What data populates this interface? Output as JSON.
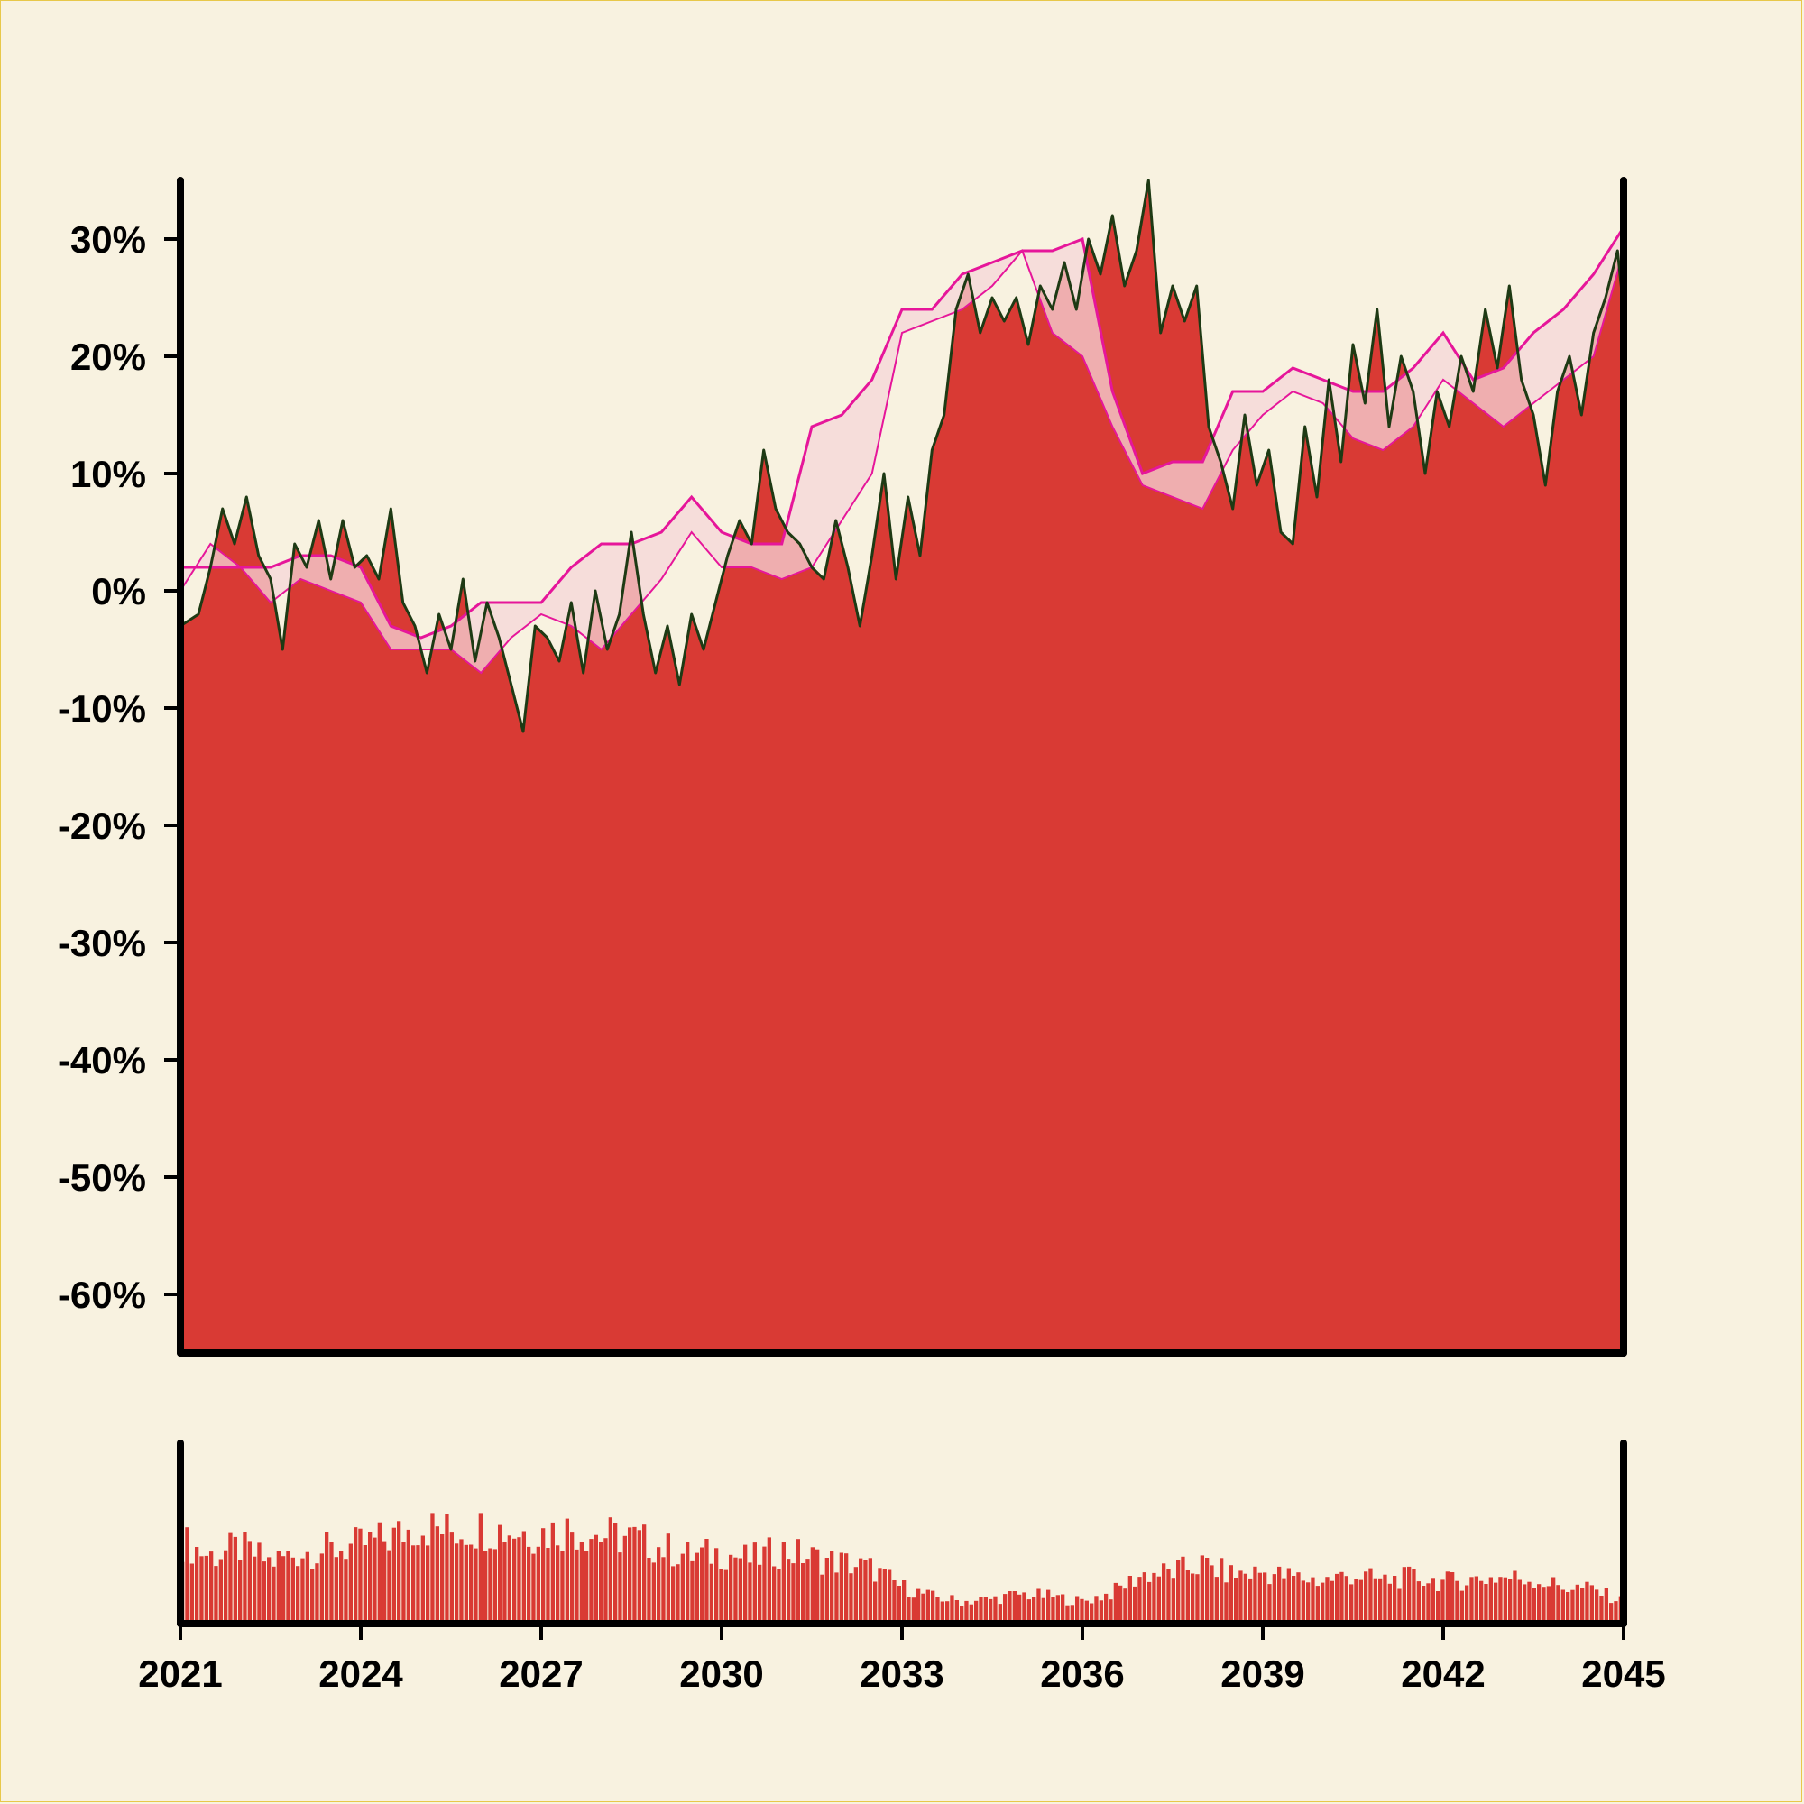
{
  "colors": {
    "background": "#f8f2e0",
    "area_fill": "#d93a34",
    "price_line": "#1e3a14",
    "band_line": "#e6169a",
    "band_fill": "#f5d6d8",
    "volume_bar": "#d93a34",
    "axis": "#000000"
  },
  "chart_data": [
    {
      "type": "area",
      "title": "",
      "xlabel": "",
      "ylabel": "",
      "x_range": [
        2021.0,
        2045.0
      ],
      "ylim": [
        -65,
        35
      ],
      "y_ticks": [
        30,
        20,
        10,
        0,
        -10,
        -20,
        -30,
        -40,
        -50,
        -60
      ],
      "y_tick_labels": [
        "30%",
        "20%",
        "10%",
        "0%",
        "-10%",
        "-20%",
        "-30%",
        "-40%",
        "-50%",
        "-60%"
      ],
      "grid": false,
      "legend": "none",
      "series": [
        {
          "role": "price",
          "x": [
            2021.0,
            2021.3,
            2021.5,
            2021.7,
            2021.9,
            2022.1,
            2022.3,
            2022.5,
            2022.7,
            2022.9,
            2023.1,
            2023.3,
            2023.5,
            2023.7,
            2023.9,
            2024.1,
            2024.3,
            2024.5,
            2024.7,
            2024.9,
            2025.1,
            2025.3,
            2025.5,
            2025.7,
            2025.9,
            2026.1,
            2026.3,
            2026.5,
            2026.7,
            2026.9,
            2027.1,
            2027.3,
            2027.5,
            2027.7,
            2027.9,
            2028.1,
            2028.3,
            2028.5,
            2028.7,
            2028.9,
            2029.1,
            2029.3,
            2029.5,
            2029.7,
            2029.9,
            2030.1,
            2030.3,
            2030.5,
            2030.7,
            2030.9,
            2031.1,
            2031.3,
            2031.5,
            2031.7,
            2031.9,
            2032.1,
            2032.3,
            2032.5,
            2032.7,
            2032.9,
            2033.1,
            2033.3,
            2033.5,
            2033.7,
            2033.9,
            2034.1,
            2034.3,
            2034.5,
            2034.7,
            2034.9,
            2035.1,
            2035.3,
            2035.5,
            2035.7,
            2035.9,
            2036.1,
            2036.3,
            2036.5,
            2036.7,
            2036.9,
            2037.1,
            2037.3,
            2037.5,
            2037.7,
            2037.9,
            2038.1,
            2038.3,
            2038.5,
            2038.7,
            2038.9,
            2039.1,
            2039.3,
            2039.5,
            2039.7,
            2039.9,
            2040.1,
            2040.3,
            2040.5,
            2040.7,
            2040.9,
            2041.1,
            2041.3,
            2041.5,
            2041.7,
            2041.9,
            2042.1,
            2042.3,
            2042.5,
            2042.7,
            2042.9,
            2043.1,
            2043.3,
            2043.5,
            2043.7,
            2043.9,
            2044.1,
            2044.3,
            2044.5,
            2044.7,
            2044.9,
            2045.0
          ],
          "y": [
            -3,
            -2,
            2,
            7,
            4,
            8,
            3,
            1,
            -5,
            4,
            2,
            6,
            1,
            6,
            2,
            3,
            1,
            7,
            -1,
            -3,
            -7,
            -2,
            -5,
            1,
            -6,
            -1,
            -4,
            -8,
            -12,
            -3,
            -4,
            -6,
            -1,
            -7,
            0,
            -5,
            -2,
            5,
            -2,
            -7,
            -3,
            -8,
            -2,
            -5,
            -1,
            3,
            6,
            4,
            12,
            7,
            5,
            4,
            2,
            1,
            6,
            2,
            -3,
            3,
            10,
            1,
            8,
            3,
            12,
            15,
            24,
            27,
            22,
            25,
            23,
            25,
            21,
            26,
            24,
            28,
            24,
            30,
            27,
            32,
            26,
            29,
            35,
            22,
            26,
            23,
            26,
            14,
            11,
            7,
            15,
            9,
            12,
            5,
            4,
            14,
            8,
            18,
            11,
            21,
            16,
            24,
            14,
            20,
            17,
            10,
            17,
            14,
            20,
            17,
            24,
            19,
            26,
            18,
            15,
            9,
            17,
            20,
            15,
            22,
            25,
            29,
            24
          ],
          "width": 3
        },
        {
          "role": "band_upper",
          "x": [
            2021.0,
            2021.5,
            2022.0,
            2022.5,
            2023.0,
            2023.5,
            2024.0,
            2024.5,
            2025.0,
            2025.5,
            2026.0,
            2026.5,
            2027.0,
            2027.5,
            2028.0,
            2028.5,
            2029.0,
            2029.5,
            2030.0,
            2030.5,
            2031.0,
            2031.5,
            2032.0,
            2032.5,
            2033.0,
            2033.5,
            2034.0,
            2034.5,
            2035.0,
            2035.5,
            2036.0,
            2036.5,
            2037.0,
            2037.5,
            2038.0,
            2038.5,
            2039.0,
            2039.5,
            2040.0,
            2040.5,
            2041.0,
            2041.5,
            2042.0,
            2042.5,
            2043.0,
            2043.5,
            2044.0,
            2044.5,
            2045.0
          ],
          "y": [
            2,
            2,
            2,
            2,
            3,
            3,
            2,
            -3,
            -4,
            -3,
            -1,
            -1,
            -1,
            2,
            4,
            4,
            5,
            8,
            5,
            4,
            4,
            14,
            15,
            18,
            24,
            24,
            27,
            28,
            29,
            29,
            30,
            17,
            10,
            11,
            11,
            17,
            17,
            19,
            18,
            17,
            17,
            19,
            22,
            18,
            19,
            22,
            24,
            27,
            31
          ],
          "width": 3
        },
        {
          "role": "band_lower",
          "x": [
            2021.0,
            2021.5,
            2022.0,
            2022.5,
            2023.0,
            2023.5,
            2024.0,
            2024.5,
            2025.0,
            2025.5,
            2026.0,
            2026.5,
            2027.0,
            2027.5,
            2028.0,
            2028.5,
            2029.0,
            2029.5,
            2030.0,
            2030.5,
            2031.0,
            2031.5,
            2032.0,
            2032.5,
            2033.0,
            2033.5,
            2034.0,
            2034.5,
            2035.0,
            2035.5,
            2036.0,
            2036.5,
            2037.0,
            2037.5,
            2038.0,
            2038.5,
            2039.0,
            2039.5,
            2040.0,
            2040.5,
            2041.0,
            2041.5,
            2042.0,
            2042.5,
            2043.0,
            2043.5,
            2044.0,
            2044.5,
            2045.0
          ],
          "y": [
            0,
            4,
            2,
            -1,
            1,
            0,
            -1,
            -5,
            -5,
            -5,
            -7,
            -4,
            -2,
            -3,
            -5,
            -2,
            1,
            5,
            2,
            2,
            1,
            2,
            6,
            10,
            22,
            23,
            24,
            26,
            29,
            22,
            20,
            14,
            9,
            8,
            7,
            12,
            15,
            17,
            16,
            13,
            12,
            14,
            18,
            16,
            14,
            16,
            18,
            20,
            29
          ],
          "width": 2
        }
      ]
    },
    {
      "type": "bar",
      "title": "",
      "role": "volume",
      "x_range": [
        2021.0,
        2045.0
      ],
      "x_ticks": [
        2021,
        2024,
        2027,
        2030,
        2033,
        2036,
        2039,
        2042,
        2045
      ],
      "x_tick_labels": [
        "2021",
        "2024",
        "2027",
        "2030",
        "2033",
        "2036",
        "2039",
        "2042",
        "2045"
      ],
      "ylim": [
        0,
        100
      ],
      "x": [
        2021.0,
        2021.5,
        2022.0,
        2022.5,
        2023.0,
        2023.5,
        2024.0,
        2024.5,
        2025.0,
        2025.5,
        2026.0,
        2026.5,
        2027.0,
        2027.5,
        2028.0,
        2028.5,
        2029.0,
        2029.5,
        2030.0,
        2030.5,
        2031.0,
        2031.5,
        2032.0,
        2032.5,
        2033.0,
        2033.5,
        2034.0,
        2034.5,
        2035.0,
        2035.5,
        2036.0,
        2036.5,
        2037.0,
        2037.5,
        2038.0,
        2038.5,
        2039.0,
        2039.5,
        2040.0,
        2040.5,
        2041.0,
        2041.5,
        2042.0,
        2042.5,
        2043.0,
        2043.5,
        2044.0,
        2044.5,
        2045.0
      ],
      "values": [
        68,
        55,
        62,
        50,
        58,
        60,
        64,
        70,
        80,
        75,
        78,
        76,
        74,
        77,
        72,
        70,
        62,
        55,
        58,
        52,
        60,
        54,
        50,
        45,
        30,
        22,
        18,
        20,
        24,
        22,
        18,
        25,
        40,
        42,
        48,
        40,
        42,
        38,
        35,
        40,
        35,
        38,
        34,
        36,
        38,
        36,
        30,
        28,
        18
      ]
    }
  ]
}
